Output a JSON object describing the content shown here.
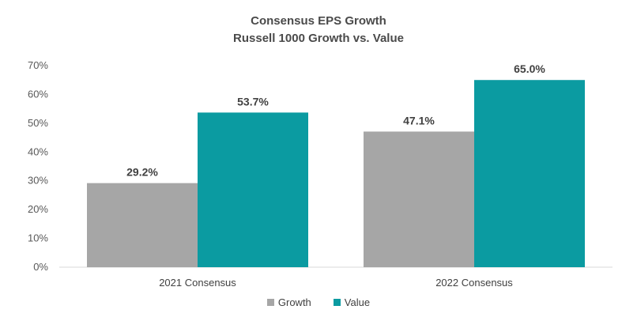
{
  "chart_data": {
    "type": "bar",
    "title": "Consensus EPS Growth",
    "subtitle": "Russell 1000 Growth vs. Value",
    "categories": [
      "2021 Consensus",
      "2022 Consensus"
    ],
    "series": [
      {
        "name": "Growth",
        "values": [
          29.2,
          47.1
        ],
        "labels": [
          "29.2%",
          "47.1%"
        ],
        "color": "#a6a6a6"
      },
      {
        "name": "Value",
        "values": [
          53.7,
          65.0
        ],
        "labels": [
          "53.7%",
          "65.0%"
        ],
        "color": "#0b9ba1"
      }
    ],
    "ylim": [
      0,
      70
    ],
    "yticks": [
      "0%",
      "10%",
      "20%",
      "30%",
      "40%",
      "50%",
      "60%",
      "70%"
    ],
    "ytick_values": [
      0,
      10,
      20,
      30,
      40,
      50,
      60,
      70
    ],
    "xlabel": "",
    "ylabel": "",
    "grid": false,
    "legend_position": "bottom"
  }
}
